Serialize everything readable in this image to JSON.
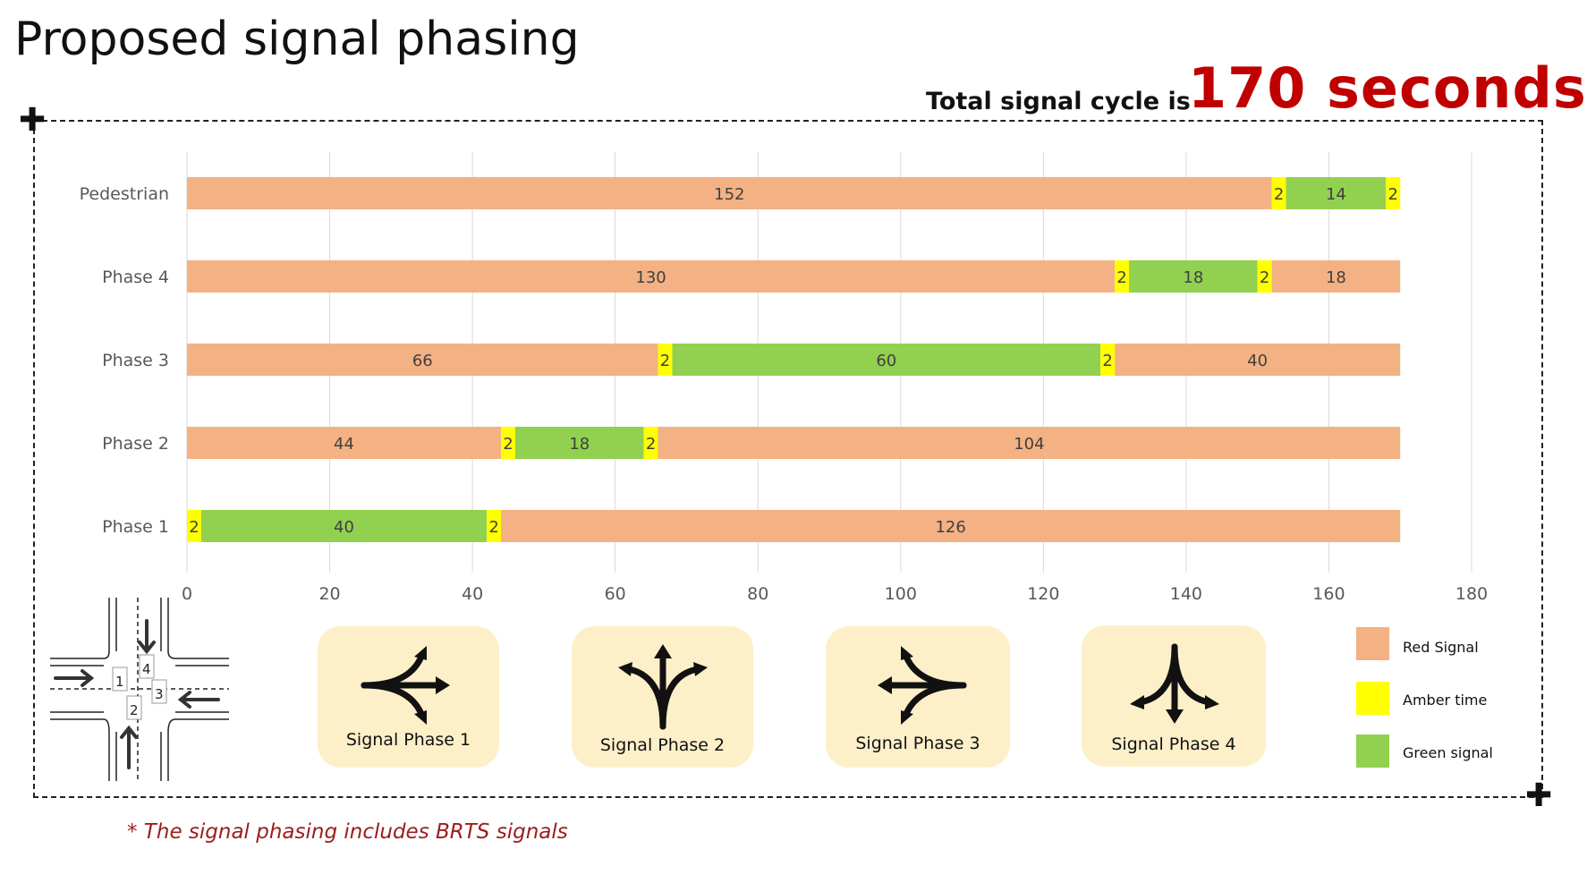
{
  "header": {
    "title": "Proposed signal phasing",
    "cycle_prefix": "Total signal cycle is",
    "cycle_value": "170 seconds"
  },
  "chart_data": {
    "type": "bar",
    "orientation": "horizontal-stacked",
    "categories": [
      "Pedestrian",
      "Phase 4",
      "Phase 3",
      "Phase 2",
      "Phase 1"
    ],
    "xlim": [
      0,
      180
    ],
    "xticks": [
      0,
      20,
      40,
      60,
      80,
      100,
      120,
      140,
      160,
      180
    ],
    "grid": true,
    "segments": {
      "Pedestrian": [
        {
          "state": "red",
          "value": 152
        },
        {
          "state": "amber",
          "value": 2
        },
        {
          "state": "green",
          "value": 14
        },
        {
          "state": "amber",
          "value": 2
        }
      ],
      "Phase 4": [
        {
          "state": "red",
          "value": 130
        },
        {
          "state": "amber",
          "value": 2
        },
        {
          "state": "green",
          "value": 18
        },
        {
          "state": "amber",
          "value": 2
        },
        {
          "state": "red",
          "value": 18
        }
      ],
      "Phase 3": [
        {
          "state": "red",
          "value": 66
        },
        {
          "state": "amber",
          "value": 2
        },
        {
          "state": "green",
          "value": 60
        },
        {
          "state": "amber",
          "value": 2
        },
        {
          "state": "red",
          "value": 40
        }
      ],
      "Phase 2": [
        {
          "state": "red",
          "value": 44
        },
        {
          "state": "amber",
          "value": 2
        },
        {
          "state": "green",
          "value": 18
        },
        {
          "state": "amber",
          "value": 2
        },
        {
          "state": "red",
          "value": 104
        }
      ],
      "Phase 1": [
        {
          "state": "amber",
          "value": 2
        },
        {
          "state": "green",
          "value": 40
        },
        {
          "state": "amber",
          "value": 2
        },
        {
          "state": "red",
          "value": 126
        }
      ]
    },
    "colors": {
      "red": "#f4b183",
      "amber": "#ffff00",
      "green": "#92d050"
    }
  },
  "intersection": {
    "approach_labels": [
      "1",
      "2",
      "3",
      "4"
    ]
  },
  "phase_cards": [
    {
      "label": "Signal Phase 1"
    },
    {
      "label": "Signal Phase 2"
    },
    {
      "label": "Signal Phase 3"
    },
    {
      "label": "Signal Phase 4"
    }
  ],
  "legend": [
    {
      "label": "Red Signal",
      "color": "#f4b183"
    },
    {
      "label": "Amber time",
      "color": "#ffff00"
    },
    {
      "label": "Green signal",
      "color": "#92d050"
    }
  ],
  "footnote": "* The signal phasing includes BRTS signals"
}
